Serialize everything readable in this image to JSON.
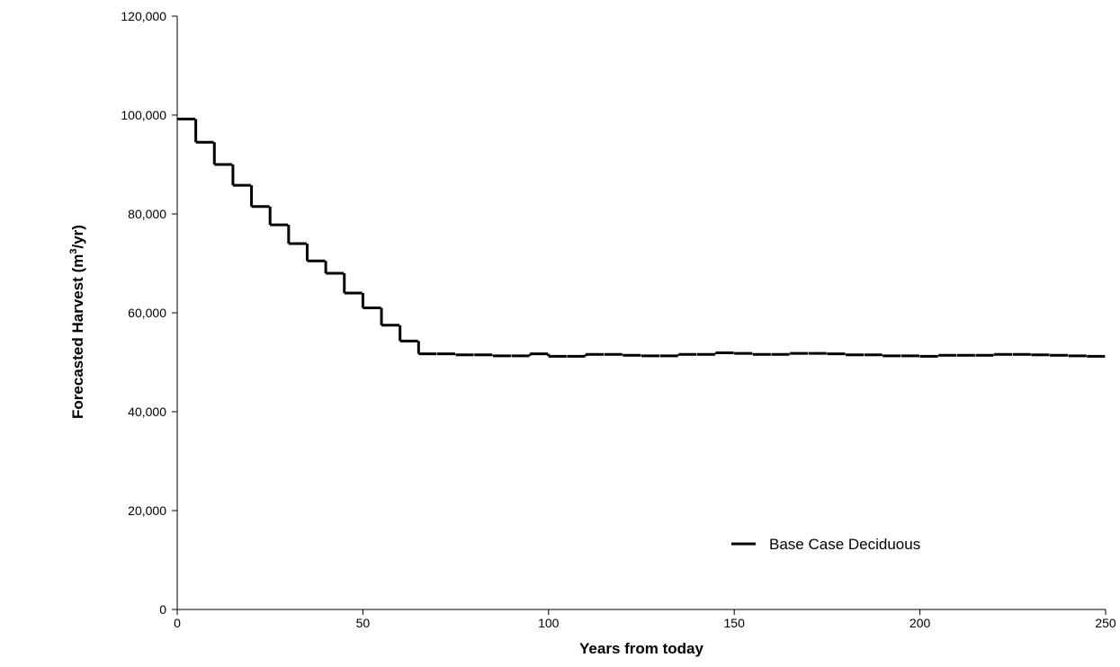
{
  "chart_data": {
    "type": "line",
    "xlabel": "Years from today",
    "ylabel_main": "Forecasted Harvest (m",
    "ylabel_sup": "3",
    "ylabel_tail": "/yr)",
    "xlim": [
      0,
      250
    ],
    "ylim": [
      0,
      120000
    ],
    "x_ticks": [
      0,
      50,
      100,
      150,
      200,
      250
    ],
    "x_tick_labels": [
      "0",
      "50",
      "100",
      "150",
      "200",
      "250"
    ],
    "y_ticks": [
      0,
      20000,
      40000,
      60000,
      80000,
      100000,
      120000
    ],
    "y_tick_labels": [
      "0",
      "20,000",
      "40,000",
      "60,000",
      "80,000",
      "100,000",
      "120,000"
    ],
    "grid": false,
    "legend_position": "bottom-right",
    "step": true,
    "series": [
      {
        "name": "Base Case Deciduous",
        "color": "#000000",
        "style": "dashed",
        "x": [
          0,
          5,
          10,
          15,
          20,
          25,
          30,
          35,
          40,
          45,
          50,
          55,
          60,
          65,
          70,
          75,
          80,
          85,
          90,
          95,
          100,
          105,
          110,
          115,
          120,
          125,
          130,
          135,
          140,
          145,
          150,
          155,
          160,
          165,
          170,
          175,
          180,
          185,
          190,
          195,
          200,
          205,
          210,
          215,
          220,
          225,
          230,
          235,
          240,
          245,
          250
        ],
        "y": [
          99200,
          94500,
          90000,
          85800,
          81500,
          77800,
          74000,
          70500,
          68000,
          64000,
          61000,
          57500,
          54300,
          51700,
          51700,
          51500,
          51500,
          51300,
          51300,
          51700,
          51200,
          51200,
          51600,
          51600,
          51400,
          51300,
          51300,
          51600,
          51600,
          51900,
          51800,
          51600,
          51600,
          51800,
          51800,
          51700,
          51500,
          51500,
          51300,
          51300,
          51200,
          51400,
          51400,
          51400,
          51600,
          51600,
          51500,
          51400,
          51300,
          51200,
          51200
        ]
      }
    ]
  }
}
